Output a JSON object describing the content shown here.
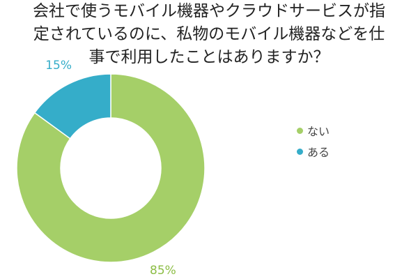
{
  "title_lines": [
    "会社で使うモバイル機器やクラウドサービスが指",
    "定されているのに、私物のモバイル機器などを仕",
    "事で利用したことはありますか？"
  ],
  "chart_data": {
    "type": "pie",
    "variant": "donut",
    "title": "会社で使うモバイル機器やクラウドサービスが指定されているのに、私物のモバイル機器などを仕事で利用したことはありますか？",
    "categories": [
      "ない",
      "ある"
    ],
    "values": [
      85,
      15
    ],
    "labels": [
      "85%",
      "15%"
    ],
    "colors": [
      "#a5cf68",
      "#35adc9"
    ],
    "label_colors": [
      "#8cbd45",
      "#35adc9"
    ],
    "legend_placement": "right"
  }
}
